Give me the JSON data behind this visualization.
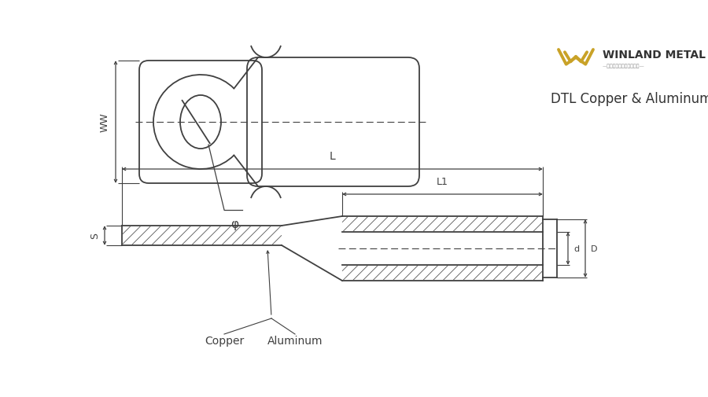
{
  "bg_color": "#ffffff",
  "line_color": "#404040",
  "hatch_color": "#555555",
  "title_text": "DTL Copper & Aluminum Terminal",
  "label_copper": "Copper",
  "label_aluminum": "Aluminum",
  "label_S": "S",
  "label_d": "d",
  "label_D": "D",
  "label_L1": "L1",
  "label_L": "L",
  "label_WW": "WW",
  "label_phi": "φ",
  "logo_color": "#c9a227",
  "logo_text": "WINLAND METAL",
  "logo_subtext": "—专业的铜铝金属有限公司—"
}
